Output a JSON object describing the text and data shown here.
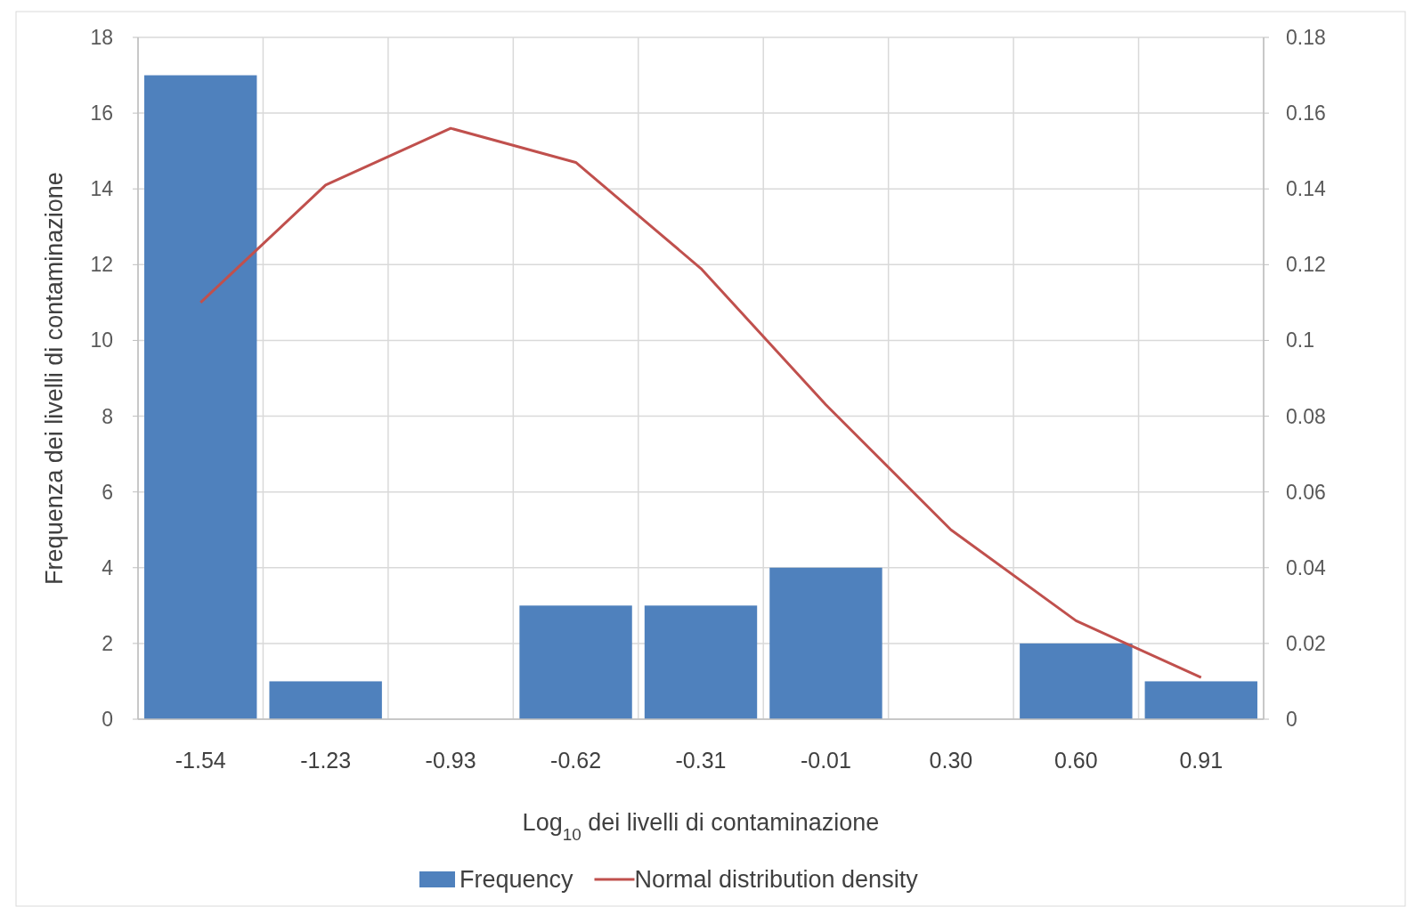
{
  "chart_data": {
    "type": "bar",
    "xlabel": "Log$_{10}$ dei livelli di contaminazione",
    "ylabel": "Frequenza dei livelli di contaminazione",
    "categories": [
      "-1.54",
      "-1.23",
      "-0.93",
      "-0.62",
      "-0.31",
      "-0.01",
      "0.30",
      "0.60",
      "0.91"
    ],
    "series": [
      {
        "name": "Frequency",
        "color": "#4f81bd",
        "values": [
          17,
          1,
          0,
          3,
          3,
          4,
          0,
          2,
          1
        ]
      },
      {
        "name": "Normal distribution density",
        "type": "line",
        "axis": "y2",
        "color": "#c0504d",
        "values": [
          0.11,
          0.141,
          0.156,
          0.147,
          0.119,
          0.083,
          0.05,
          0.026,
          0.011
        ]
      }
    ],
    "ylim": [
      0,
      18
    ],
    "yticks": [
      0,
      2,
      4,
      6,
      8,
      10,
      12,
      14,
      16,
      18
    ],
    "y2lim": [
      0,
      0.18
    ],
    "y2ticks": [
      0,
      0.02,
      0.04,
      0.06,
      0.08,
      0.1,
      0.12,
      0.14,
      0.16,
      0.18
    ],
    "grid": true,
    "legend": "bottom",
    "marker": "none",
    "line_style": "solid"
  }
}
